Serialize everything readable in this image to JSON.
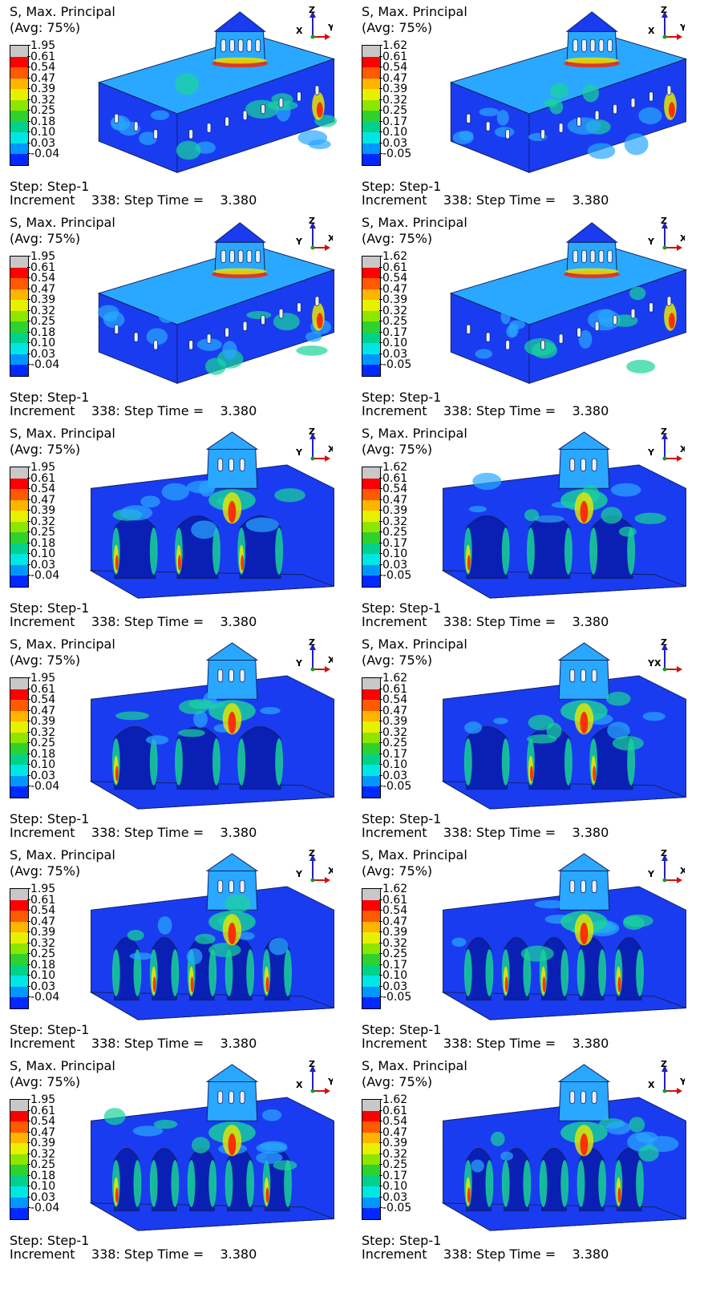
{
  "panels": [
    {
      "title": "S, Max. Principal",
      "avg": "(Avg: 75%)",
      "ticks": [
        "1.95",
        "0.61",
        "0.54",
        "0.47",
        "0.39",
        "0.32",
        "0.25",
        "0.18",
        "0.10",
        "0.03",
        "-0.04"
      ],
      "step": "Step: Step-1",
      "increment": "Increment    338: Step Time =    3.380",
      "axes": [
        "Z",
        "X",
        "Y"
      ],
      "view": "exterior-front"
    },
    {
      "title": "S, Max. Principal",
      "avg": "(Avg: 75%)",
      "ticks": [
        "1.62",
        "0.61",
        "0.54",
        "0.47",
        "0.39",
        "0.32",
        "0.25",
        "0.17",
        "0.10",
        "0.03",
        "-0.05"
      ],
      "step": "Step: Step-1",
      "increment": "Increment    338: Step Time =    3.380",
      "axes": [
        "Z",
        "X",
        "Y"
      ],
      "view": "exterior-front"
    },
    {
      "title": "S, Max. Principal",
      "avg": "(Avg: 75%)",
      "ticks": [
        "1.95",
        "0.61",
        "0.54",
        "0.47",
        "0.39",
        "0.32",
        "0.25",
        "0.18",
        "0.10",
        "0.03",
        "-0.04"
      ],
      "step": "Step: Step-1",
      "increment": "Increment    338: Step Time =    3.380",
      "axes": [
        "Z",
        "Y",
        "X"
      ],
      "view": "exterior-back"
    },
    {
      "title": "S, Max. Principal",
      "avg": "(Avg: 75%)",
      "ticks": [
        "1.62",
        "0.61",
        "0.54",
        "0.47",
        "0.39",
        "0.32",
        "0.25",
        "0.17",
        "0.10",
        "0.03",
        "-0.05"
      ],
      "step": "Step: Step-1",
      "increment": "Increment    338: Step Time =    3.380",
      "axes": [
        "Z",
        "Y",
        "X"
      ],
      "view": "exterior-back"
    },
    {
      "title": "S, Max. Principal",
      "avg": "(Avg: 75%)",
      "ticks": [
        "1.95",
        "0.61",
        "0.54",
        "0.47",
        "0.39",
        "0.32",
        "0.25",
        "0.18",
        "0.10",
        "0.03",
        "-0.04"
      ],
      "step": "Step: Step-1",
      "increment": "Increment    338: Step Time =    3.380",
      "axes": [
        "Z",
        "Y",
        "X"
      ],
      "view": "section-side"
    },
    {
      "title": "S, Max. Principal",
      "avg": "(Avg: 75%)",
      "ticks": [
        "1.62",
        "0.61",
        "0.54",
        "0.47",
        "0.39",
        "0.32",
        "0.25",
        "0.17",
        "0.10",
        "0.03",
        "-0.05"
      ],
      "step": "Step: Step-1",
      "increment": "Increment    338: Step Time =    3.380",
      "axes": [
        "Z",
        "Y",
        "X"
      ],
      "view": "section-side"
    },
    {
      "title": "S, Max. Principal",
      "avg": "(Avg: 75%)",
      "ticks": [
        "1.95",
        "0.61",
        "0.54",
        "0.47",
        "0.39",
        "0.32",
        "0.25",
        "0.18",
        "0.10",
        "0.03",
        "-0.04"
      ],
      "step": "Step: Step-1",
      "increment": "Increment    338: Step Time =    3.380",
      "axes": [
        "Z",
        "Y",
        "X"
      ],
      "view": "section-front"
    },
    {
      "title": "S, Max. Principal",
      "avg": "(Avg: 75%)",
      "ticks": [
        "1.62",
        "0.61",
        "0.54",
        "0.47",
        "0.39",
        "0.32",
        "0.25",
        "0.17",
        "0.10",
        "0.03",
        "-0.05"
      ],
      "step": "Step: Step-1",
      "increment": "Increment    338: Step Time =    3.380",
      "axes": [
        "Z",
        "YX"
      ],
      "view": "section-front"
    },
    {
      "title": "S, Max. Principal",
      "avg": "(Avg: 75%)",
      "ticks": [
        "1.95",
        "0.61",
        "0.54",
        "0.47",
        "0.39",
        "0.32",
        "0.25",
        "0.18",
        "0.10",
        "0.03",
        "-0.04"
      ],
      "step": "Step: Step-1",
      "increment": "Increment    338: Step Time =    3.380",
      "axes": [
        "Z",
        "Y",
        "X"
      ],
      "view": "section-long"
    },
    {
      "title": "S, Max. Principal",
      "avg": "(Avg: 75%)",
      "ticks": [
        "1.62",
        "0.61",
        "0.54",
        "0.47",
        "0.39",
        "0.32",
        "0.25",
        "0.17",
        "0.10",
        "0.03",
        "-0.05"
      ],
      "step": "Step: Step-1",
      "increment": "Increment    338: Step Time =    3.380",
      "axes": [
        "Z",
        "Y",
        "X"
      ],
      "view": "section-long"
    },
    {
      "title": "S, Max. Principal",
      "avg": "(Avg: 75%)",
      "ticks": [
        "1.95",
        "0.61",
        "0.54",
        "0.47",
        "0.39",
        "0.32",
        "0.25",
        "0.18",
        "0.10",
        "0.03",
        "-0.04"
      ],
      "step": "Step: Step-1",
      "increment": "Increment    338: Step Time =    3.380",
      "axes": [
        "Z",
        "X",
        "Y"
      ],
      "view": "section-long-back"
    },
    {
      "title": "S, Max. Principal",
      "avg": "(Avg: 75%)",
      "ticks": [
        "1.62",
        "0.61",
        "0.54",
        "0.47",
        "0.39",
        "0.32",
        "0.25",
        "0.17",
        "0.10",
        "0.03",
        "-0.05"
      ],
      "step": "Step: Step-1",
      "increment": "Increment    338: Step Time =    3.380",
      "axes": [
        "Z",
        "X",
        "Y"
      ],
      "view": "section-long-back"
    }
  ],
  "colors": {
    "scale": [
      "#c8c8c8",
      "#ff0000",
      "#ff5a00",
      "#ffb400",
      "#e6f000",
      "#8ce600",
      "#2ed22e",
      "#00d28c",
      "#00e6e6",
      "#0096ff",
      "#0028ff"
    ],
    "model_base": "#1a3cf0",
    "model_light": "#2aa8ff",
    "model_mid": "#19d49a",
    "model_hot": "#e8e800",
    "model_peak": "#ff2000",
    "edge": "#102060",
    "triad_z": "#2020c0",
    "triad_x": "#d01010",
    "triad_y": "#10a010"
  }
}
